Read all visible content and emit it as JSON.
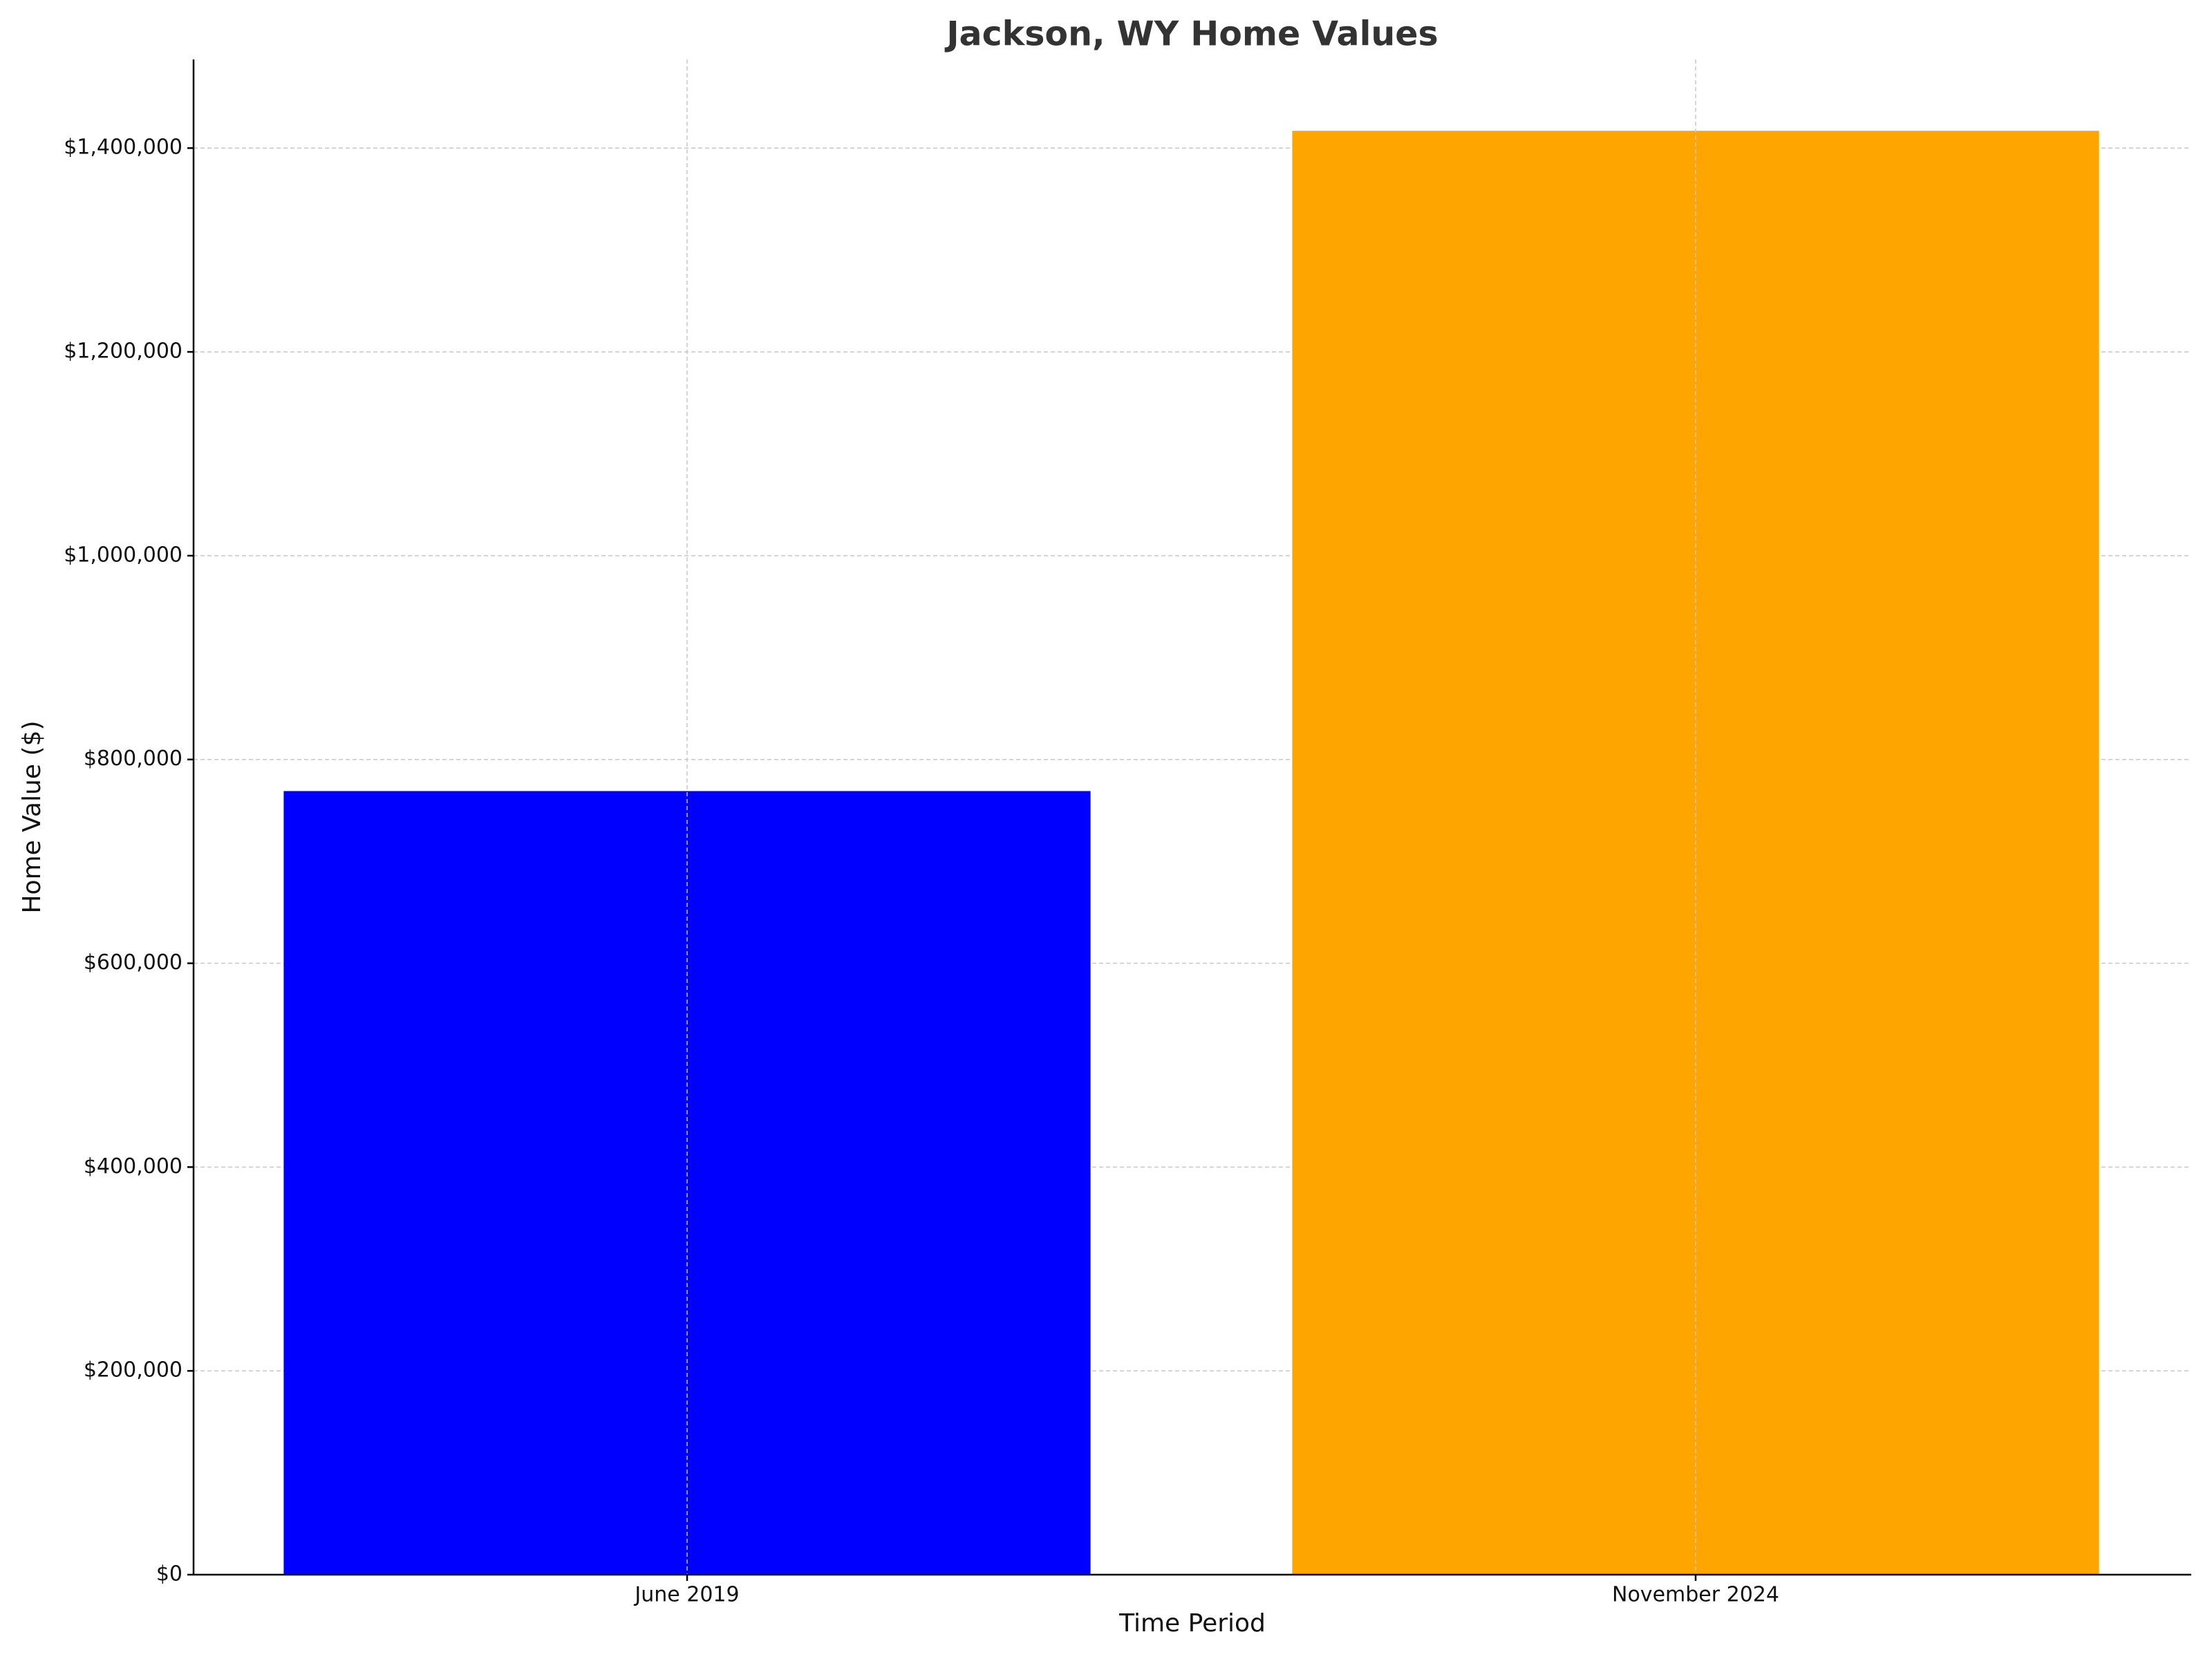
{
  "chart_data": {
    "type": "bar",
    "title": "Jackson, WY Home Values",
    "x_label": "Time Period",
    "y_label": "Home Value ($)",
    "categories": [
      "June 2019",
      "November 2024"
    ],
    "values": [
      769000,
      1417000
    ],
    "colors": [
      "#0000ff",
      "#ffa500"
    ],
    "ylim": [
      0,
      1487000
    ],
    "yticks": [
      {
        "value": 0,
        "label": "$0"
      },
      {
        "value": 200000,
        "label": "$200,000"
      },
      {
        "value": 400000,
        "label": "$400,000"
      },
      {
        "value": 600000,
        "label": "$600,000"
      },
      {
        "value": 800000,
        "label": "$800,000"
      },
      {
        "value": 1000000,
        "label": "$1,000,000"
      },
      {
        "value": 1200000,
        "label": "$1,200,000"
      },
      {
        "value": 1400000,
        "label": "$1,400,000"
      }
    ],
    "grid": true
  }
}
